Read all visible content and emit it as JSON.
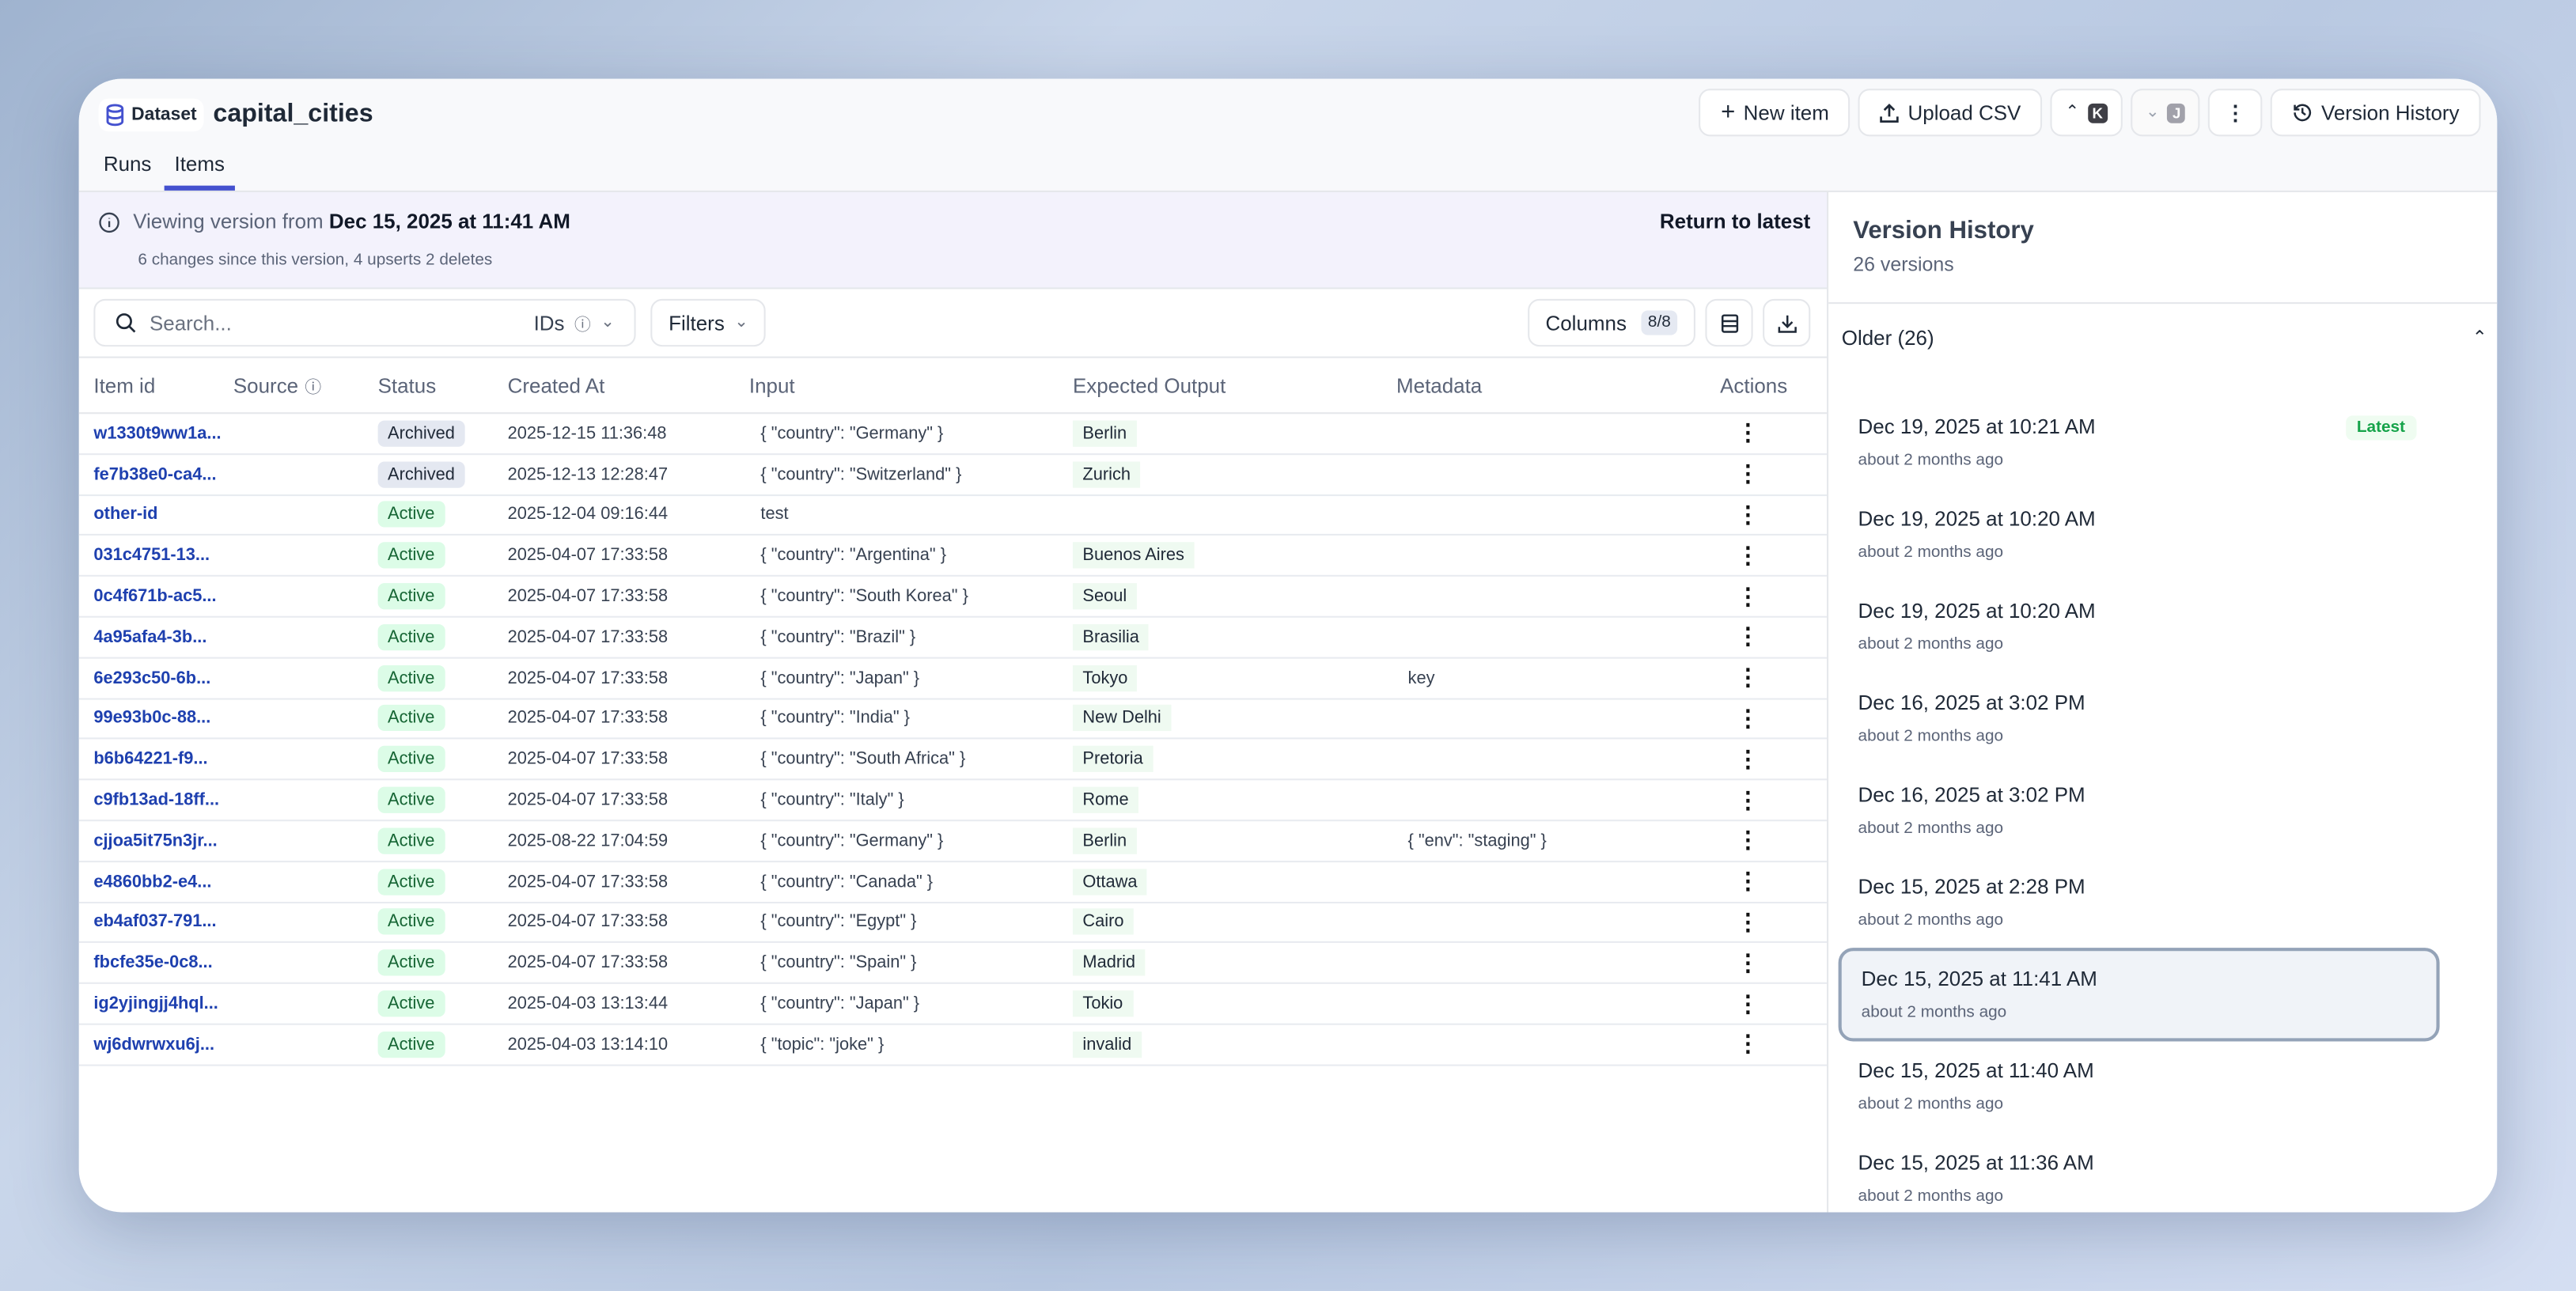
{
  "header": {
    "badge": "Dataset",
    "title": "capital_cities",
    "tabs": [
      {
        "label": "Runs"
      },
      {
        "label": "Items"
      }
    ],
    "buttons": {
      "new_item": "New item",
      "upload_csv": "Upload CSV",
      "prev_key": "K",
      "next_key": "J",
      "version_history": "Version History"
    }
  },
  "banner": {
    "prefix": "Viewing version from",
    "version": "Dec 15, 2025 at 11:41 AM",
    "summary": "6 changes since this version, 4 upserts 2 deletes",
    "return": "Return to latest"
  },
  "toolbar": {
    "search_placeholder": "Search...",
    "ids": "IDs",
    "filters": "Filters",
    "columns": "Columns",
    "columns_count": "8/8"
  },
  "table": {
    "headers": [
      "Item id",
      "Source",
      "Status",
      "Created At",
      "Input",
      "Expected Output",
      "Metadata",
      "Actions"
    ],
    "rows": [
      {
        "id": "w1330t9ww1a...",
        "status": "Archived",
        "created": "2025-12-15 11:36:48",
        "input": "{ \"country\": \"Germany\" }",
        "expected": "Berlin",
        "metadata": ""
      },
      {
        "id": "fe7b38e0-ca4...",
        "status": "Archived",
        "created": "2025-12-13 12:28:47",
        "input": "{ \"country\": \"Switzerland\" }",
        "expected": "Zurich",
        "metadata": ""
      },
      {
        "id": "other-id",
        "status": "Active",
        "created": "2025-12-04 09:16:44",
        "input": "test",
        "expected": "",
        "metadata": ""
      },
      {
        "id": "031c4751-13...",
        "status": "Active",
        "created": "2025-04-07 17:33:58",
        "input": "{ \"country\": \"Argentina\" }",
        "expected": "Buenos Aires",
        "metadata": ""
      },
      {
        "id": "0c4f671b-ac5...",
        "status": "Active",
        "created": "2025-04-07 17:33:58",
        "input": "{ \"country\": \"South Korea\" }",
        "expected": "Seoul",
        "metadata": ""
      },
      {
        "id": "4a95afa4-3b...",
        "status": "Active",
        "created": "2025-04-07 17:33:58",
        "input": "{ \"country\": \"Brazil\" }",
        "expected": "Brasilia",
        "metadata": ""
      },
      {
        "id": "6e293c50-6b...",
        "status": "Active",
        "created": "2025-04-07 17:33:58",
        "input": "{ \"country\": \"Japan\" }",
        "expected": "Tokyo",
        "metadata": "key"
      },
      {
        "id": "99e93b0c-88...",
        "status": "Active",
        "created": "2025-04-07 17:33:58",
        "input": "{ \"country\": \"India\" }",
        "expected": "New Delhi",
        "metadata": ""
      },
      {
        "id": "b6b64221-f9...",
        "status": "Active",
        "created": "2025-04-07 17:33:58",
        "input": "{ \"country\": \"South Africa\" }",
        "expected": "Pretoria",
        "metadata": ""
      },
      {
        "id": "c9fb13ad-18ff...",
        "status": "Active",
        "created": "2025-04-07 17:33:58",
        "input": "{ \"country\": \"Italy\" }",
        "expected": "Rome",
        "metadata": ""
      },
      {
        "id": "cjjoa5it75n3jr...",
        "status": "Active",
        "created": "2025-08-22 17:04:59",
        "input": "{ \"country\": \"Germany\" }",
        "expected": "Berlin",
        "metadata": "{ \"env\": \"staging\" }"
      },
      {
        "id": "e4860bb2-e4...",
        "status": "Active",
        "created": "2025-04-07 17:33:58",
        "input": "{ \"country\": \"Canada\" }",
        "expected": "Ottawa",
        "metadata": ""
      },
      {
        "id": "eb4af037-791...",
        "status": "Active",
        "created": "2025-04-07 17:33:58",
        "input": "{ \"country\": \"Egypt\" }",
        "expected": "Cairo",
        "metadata": ""
      },
      {
        "id": "fbcfe35e-0c8...",
        "status": "Active",
        "created": "2025-04-07 17:33:58",
        "input": "{ \"country\": \"Spain\" }",
        "expected": "Madrid",
        "metadata": ""
      },
      {
        "id": "ig2yjingjj4hql...",
        "status": "Active",
        "created": "2025-04-03 13:13:44",
        "input": "{ \"country\": \"Japan\" }",
        "expected": "Tokio",
        "metadata": ""
      },
      {
        "id": "wj6dwrwxu6j...",
        "status": "Active",
        "created": "2025-04-03 13:14:10",
        "input": "{ \"topic\": \"joke\" }",
        "expected": "invalid",
        "metadata": ""
      }
    ]
  },
  "sidebar": {
    "title": "Version History",
    "count": "26 versions",
    "group": "Older (26)",
    "latest_badge": "Latest",
    "versions": [
      {
        "date": "Dec 19, 2025 at 10:21 AM",
        "ago": "about 2 months ago",
        "latest": true
      },
      {
        "date": "Dec 19, 2025 at 10:20 AM",
        "ago": "about 2 months ago"
      },
      {
        "date": "Dec 19, 2025 at 10:20 AM",
        "ago": "about 2 months ago"
      },
      {
        "date": "Dec 16, 2025 at 3:02 PM",
        "ago": "about 2 months ago"
      },
      {
        "date": "Dec 16, 2025 at 3:02 PM",
        "ago": "about 2 months ago"
      },
      {
        "date": "Dec 15, 2025 at 2:28 PM",
        "ago": "about 2 months ago"
      },
      {
        "date": "Dec 15, 2025 at 11:41 AM",
        "ago": "about 2 months ago",
        "selected": true
      },
      {
        "date": "Dec 15, 2025 at 11:40 AM",
        "ago": "about 2 months ago"
      },
      {
        "date": "Dec 15, 2025 at 11:36 AM",
        "ago": "about 2 months ago"
      }
    ]
  },
  "colors": {
    "accent": "#4451cf",
    "link": "#1e40af",
    "active_bg": "#dcfce7",
    "banner_bg": "#f3f2fc"
  }
}
